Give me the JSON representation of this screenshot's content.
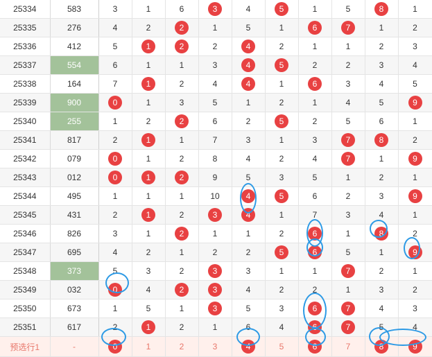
{
  "rows": [
    {
      "issue": "25334",
      "num": "583",
      "hl": false,
      "cells": [
        "3",
        "1",
        "6",
        "3",
        "4",
        "5",
        "1",
        "5",
        "8",
        "1"
      ],
      "balls": [
        3,
        5,
        8
      ]
    },
    {
      "issue": "25335",
      "num": "276",
      "hl": false,
      "cells": [
        "4",
        "2",
        "2",
        "1",
        "5",
        "1",
        "6",
        "7",
        "1",
        "2"
      ],
      "balls": [
        2,
        6,
        7
      ]
    },
    {
      "issue": "25336",
      "num": "412",
      "hl": false,
      "cells": [
        "5",
        "1",
        "2",
        "2",
        "4",
        "2",
        "1",
        "1",
        "2",
        "3"
      ],
      "balls": [
        1,
        2,
        4
      ]
    },
    {
      "issue": "25337",
      "num": "554",
      "hl": true,
      "cells": [
        "6",
        "1",
        "1",
        "3",
        "4",
        "5",
        "2",
        "2",
        "3",
        "4"
      ],
      "balls": [
        4,
        5
      ]
    },
    {
      "issue": "25338",
      "num": "164",
      "hl": false,
      "cells": [
        "7",
        "1",
        "2",
        "4",
        "4",
        "1",
        "6",
        "3",
        "4",
        "5"
      ],
      "balls": [
        1,
        4,
        6
      ]
    },
    {
      "issue": "25339",
      "num": "900",
      "hl": true,
      "cells": [
        "0",
        "1",
        "3",
        "5",
        "1",
        "2",
        "1",
        "4",
        "5",
        "9"
      ],
      "balls": [
        0,
        9
      ]
    },
    {
      "issue": "25340",
      "num": "255",
      "hl": true,
      "cells": [
        "1",
        "2",
        "2",
        "6",
        "2",
        "5",
        "2",
        "5",
        "6",
        "1"
      ],
      "balls": [
        2,
        5
      ]
    },
    {
      "issue": "25341",
      "num": "817",
      "hl": false,
      "cells": [
        "2",
        "1",
        "1",
        "7",
        "3",
        "1",
        "3",
        "7",
        "8",
        "2"
      ],
      "balls": [
        1,
        7,
        8
      ]
    },
    {
      "issue": "25342",
      "num": "079",
      "hl": false,
      "cells": [
        "0",
        "1",
        "2",
        "8",
        "4",
        "2",
        "4",
        "7",
        "1",
        "9"
      ],
      "balls": [
        0,
        7,
        9
      ]
    },
    {
      "issue": "25343",
      "num": "012",
      "hl": false,
      "cells": [
        "0",
        "1",
        "2",
        "9",
        "5",
        "3",
        "5",
        "1",
        "2",
        "1"
      ],
      "balls": [
        0,
        1,
        2
      ]
    },
    {
      "issue": "25344",
      "num": "495",
      "hl": false,
      "cells": [
        "1",
        "1",
        "1",
        "10",
        "4",
        "5",
        "6",
        "2",
        "3",
        "9"
      ],
      "balls": [
        4,
        5,
        9
      ]
    },
    {
      "issue": "25345",
      "num": "431",
      "hl": false,
      "cells": [
        "2",
        "1",
        "2",
        "3",
        "4",
        "1",
        "7",
        "3",
        "4",
        "1"
      ],
      "balls": [
        1,
        3,
        4
      ]
    },
    {
      "issue": "25346",
      "num": "826",
      "hl": false,
      "cells": [
        "3",
        "1",
        "2",
        "1",
        "1",
        "2",
        "6",
        "1",
        "8",
        "2"
      ],
      "balls": [
        2,
        6,
        8
      ]
    },
    {
      "issue": "25347",
      "num": "695",
      "hl": false,
      "cells": [
        "4",
        "2",
        "1",
        "2",
        "2",
        "5",
        "6",
        "5",
        "1",
        "9"
      ],
      "balls": [
        5,
        6,
        9
      ]
    },
    {
      "issue": "25348",
      "num": "373",
      "hl": true,
      "cells": [
        "5",
        "3",
        "2",
        "3",
        "3",
        "1",
        "1",
        "7",
        "2",
        "1"
      ],
      "balls": [
        3,
        7
      ]
    },
    {
      "issue": "25349",
      "num": "032",
      "hl": false,
      "cells": [
        "0",
        "4",
        "2",
        "3",
        "4",
        "2",
        "2",
        "1",
        "3",
        "2"
      ],
      "balls": [
        0,
        2,
        3
      ]
    },
    {
      "issue": "25350",
      "num": "673",
      "hl": false,
      "cells": [
        "1",
        "5",
        "1",
        "3",
        "5",
        "3",
        "6",
        "7",
        "4",
        "3"
      ],
      "balls": [
        3,
        6,
        7
      ]
    },
    {
      "issue": "25351",
      "num": "617",
      "hl": false,
      "cells": [
        "2",
        "1",
        "2",
        "1",
        "6",
        "4",
        "6",
        "7",
        "5",
        "4"
      ],
      "balls": [
        1,
        6,
        7
      ]
    }
  ],
  "predict_row": {
    "issue": "预选行1",
    "num": "-",
    "cells": [
      "0",
      "1",
      "2",
      "3",
      "4",
      "5",
      "6",
      "7",
      "8",
      "9"
    ],
    "balls": [
      0,
      4,
      6,
      8,
      9
    ]
  },
  "colors": {
    "ball": "#e84142",
    "highlight_cell": "#a3c29a",
    "ring": "#2d9ae5",
    "predict_text": "#e8766a",
    "predict_bg": "#fff0ec"
  }
}
